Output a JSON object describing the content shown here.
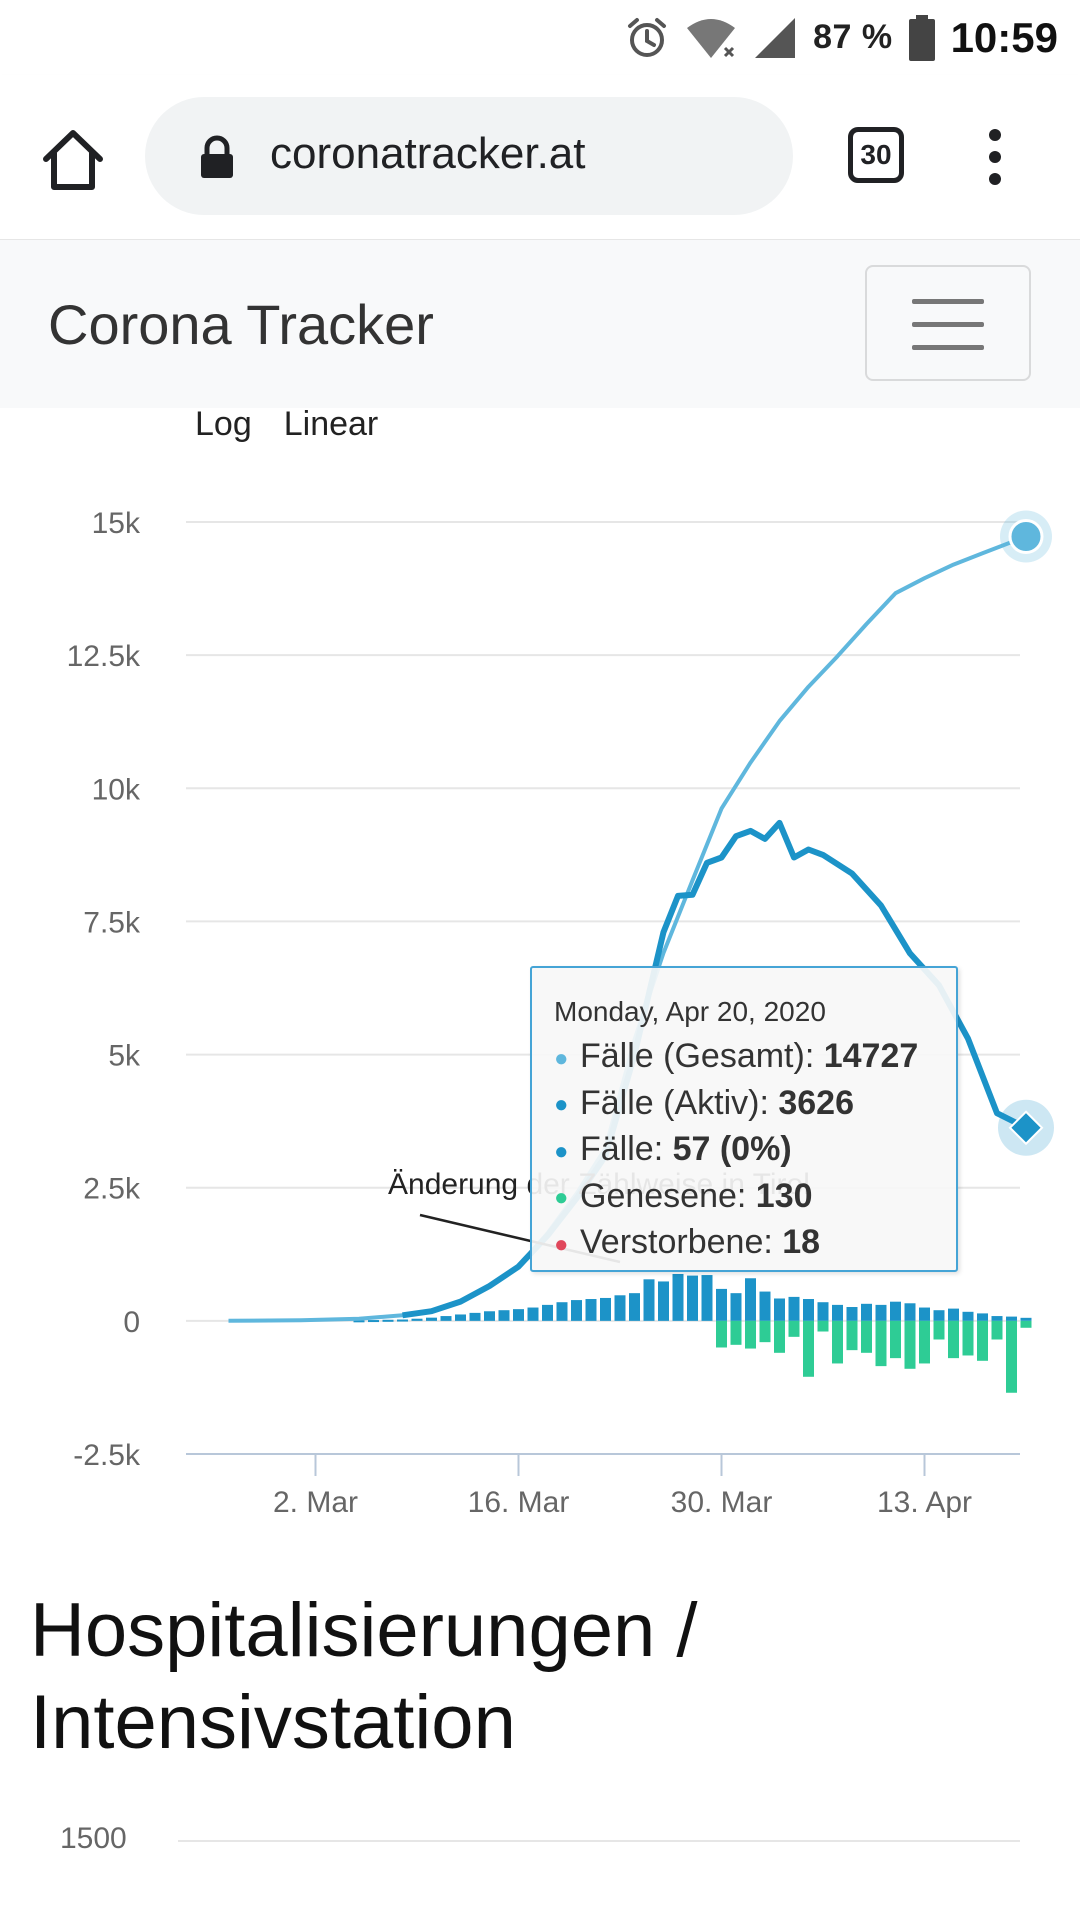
{
  "status_bar": {
    "battery": "87 %",
    "time": "10:59"
  },
  "browser": {
    "url": "coronatracker.at",
    "tab_count": "30"
  },
  "navbar": {
    "brand": "Corona Tracker"
  },
  "scale_toggle": {
    "log": "Log",
    "linear": "Linear"
  },
  "colors": {
    "total": "#5fb7dd",
    "active": "#1c93c8",
    "daily": "#1c93c8",
    "recovered": "#2ecc95",
    "deaths": "#e0475b",
    "grid": "#e6e6e6"
  },
  "chart_data": {
    "type": "line",
    "y_ticks": [
      "15k",
      "12.5k",
      "10k",
      "7.5k",
      "5k",
      "2.5k",
      "0",
      "-2.5k"
    ],
    "x_ticks": [
      "2. Mar",
      "16. Mar",
      "30. Mar",
      "13. Apr"
    ],
    "ylim": [
      -2500,
      15000
    ],
    "annotation": "Änderung der Zählweise in Tirol",
    "series": [
      {
        "name": "Fälle (Gesamt)",
        "type": "line",
        "points": [
          [
            "2020-02-25",
            2
          ],
          [
            "2020-03-01",
            10
          ],
          [
            "2020-03-05",
            40
          ],
          [
            "2020-03-08",
            104
          ],
          [
            "2020-03-10",
            182
          ],
          [
            "2020-03-12",
            361
          ],
          [
            "2020-03-14",
            655
          ],
          [
            "2020-03-16",
            1018
          ],
          [
            "2020-03-18",
            1646
          ],
          [
            "2020-03-20",
            2388
          ],
          [
            "2020-03-22",
            3244
          ],
          [
            "2020-03-24",
            5282
          ],
          [
            "2020-03-26",
            6909
          ],
          [
            "2020-03-28",
            8271
          ],
          [
            "2020-03-30",
            9618
          ],
          [
            "2020-04-01",
            10482
          ],
          [
            "2020-04-03",
            11262
          ],
          [
            "2020-04-05",
            11907
          ],
          [
            "2020-04-07",
            12481
          ],
          [
            "2020-04-09",
            13084
          ],
          [
            "2020-04-11",
            13663
          ],
          [
            "2020-04-13",
            13945
          ],
          [
            "2020-04-15",
            14200
          ],
          [
            "2020-04-17",
            14412
          ],
          [
            "2020-04-20",
            14727
          ]
        ]
      },
      {
        "name": "Fälle (Aktiv)",
        "type": "line",
        "points": [
          [
            "2020-03-08",
            104
          ],
          [
            "2020-03-10",
            182
          ],
          [
            "2020-03-12",
            361
          ],
          [
            "2020-03-14",
            655
          ],
          [
            "2020-03-16",
            1018
          ],
          [
            "2020-03-18",
            1600
          ],
          [
            "2020-03-20",
            2300
          ],
          [
            "2020-03-22",
            3100
          ],
          [
            "2020-03-24",
            5000
          ],
          [
            "2020-03-26",
            7300
          ],
          [
            "2020-03-27",
            7980
          ],
          [
            "2020-03-28",
            8000
          ],
          [
            "2020-03-29",
            8600
          ],
          [
            "2020-03-30",
            8700
          ],
          [
            "2020-03-31",
            9100
          ],
          [
            "2020-04-01",
            9200
          ],
          [
            "2020-04-02",
            9050
          ],
          [
            "2020-04-03",
            9350
          ],
          [
            "2020-04-04",
            8700
          ],
          [
            "2020-04-05",
            8850
          ],
          [
            "2020-04-06",
            8750
          ],
          [
            "2020-04-08",
            8400
          ],
          [
            "2020-04-10",
            7800
          ],
          [
            "2020-04-12",
            6900
          ],
          [
            "2020-04-14",
            6300
          ],
          [
            "2020-04-16",
            5300
          ],
          [
            "2020-04-18",
            3900
          ],
          [
            "2020-04-20",
            3626
          ]
        ]
      },
      {
        "name": "Fälle",
        "type": "bar",
        "points": [
          [
            "2020-03-05",
            10
          ],
          [
            "2020-03-06",
            15
          ],
          [
            "2020-03-07",
            20
          ],
          [
            "2020-03-08",
            25
          ],
          [
            "2020-03-09",
            40
          ],
          [
            "2020-03-10",
            60
          ],
          [
            "2020-03-11",
            90
          ],
          [
            "2020-03-12",
            120
          ],
          [
            "2020-03-13",
            150
          ],
          [
            "2020-03-14",
            180
          ],
          [
            "2020-03-15",
            200
          ],
          [
            "2020-03-16",
            220
          ],
          [
            "2020-03-17",
            250
          ],
          [
            "2020-03-18",
            300
          ],
          [
            "2020-03-19",
            350
          ],
          [
            "2020-03-20",
            390
          ],
          [
            "2020-03-21",
            410
          ],
          [
            "2020-03-22",
            430
          ],
          [
            "2020-03-23",
            480
          ],
          [
            "2020-03-24",
            520
          ],
          [
            "2020-03-25",
            780
          ],
          [
            "2020-03-26",
            740
          ],
          [
            "2020-03-27",
            880
          ],
          [
            "2020-03-28",
            850
          ],
          [
            "2020-03-29",
            860
          ],
          [
            "2020-03-30",
            600
          ],
          [
            "2020-03-31",
            520
          ],
          [
            "2020-04-01",
            800
          ],
          [
            "2020-04-02",
            550
          ],
          [
            "2020-04-03",
            420
          ],
          [
            "2020-04-04",
            450
          ],
          [
            "2020-04-05",
            410
          ],
          [
            "2020-04-06",
            350
          ],
          [
            "2020-04-07",
            300
          ],
          [
            "2020-04-08",
            260
          ],
          [
            "2020-04-09",
            320
          ],
          [
            "2020-04-10",
            300
          ],
          [
            "2020-04-11",
            360
          ],
          [
            "2020-04-12",
            330
          ],
          [
            "2020-04-13",
            250
          ],
          [
            "2020-04-14",
            200
          ],
          [
            "2020-04-15",
            230
          ],
          [
            "2020-04-16",
            170
          ],
          [
            "2020-04-17",
            140
          ],
          [
            "2020-04-18",
            90
          ],
          [
            "2020-04-19",
            80
          ],
          [
            "2020-04-20",
            57
          ]
        ]
      },
      {
        "name": "Genesene",
        "type": "bar",
        "points": [
          [
            "2020-03-30",
            -500
          ],
          [
            "2020-03-31",
            -450
          ],
          [
            "2020-04-01",
            -520
          ],
          [
            "2020-04-02",
            -400
          ],
          [
            "2020-04-03",
            -600
          ],
          [
            "2020-04-04",
            -300
          ],
          [
            "2020-04-05",
            -1050
          ],
          [
            "2020-04-06",
            -200
          ],
          [
            "2020-04-07",
            -800
          ],
          [
            "2020-04-08",
            -550
          ],
          [
            "2020-04-09",
            -600
          ],
          [
            "2020-04-10",
            -850
          ],
          [
            "2020-04-11",
            -700
          ],
          [
            "2020-04-12",
            -900
          ],
          [
            "2020-04-13",
            -800
          ],
          [
            "2020-04-14",
            -350
          ],
          [
            "2020-04-15",
            -700
          ],
          [
            "2020-04-16",
            -650
          ],
          [
            "2020-04-17",
            -750
          ],
          [
            "2020-04-18",
            -350
          ],
          [
            "2020-04-19",
            -1350
          ],
          [
            "2020-04-20",
            -130
          ]
        ]
      }
    ],
    "tooltip": {
      "date": "Monday, Apr 20, 2020",
      "rows": [
        {
          "label": "Fälle (Gesamt): ",
          "value": "14727",
          "color": "#5fb7dd"
        },
        {
          "label": "Fälle (Aktiv): ",
          "value": "3626",
          "color": "#1c93c8"
        },
        {
          "label": "Fälle: ",
          "value": "57 (0%)",
          "color": "#1c93c8"
        },
        {
          "label": "Genesene: ",
          "value": "130",
          "color": "#2ecc95"
        },
        {
          "label": "Verstorbene: ",
          "value": "18",
          "color": "#e0475b"
        }
      ]
    }
  },
  "section": {
    "title_line1": "Hospitalisierungen /",
    "title_line2": "Intensivstation"
  },
  "chart2": {
    "y_tick": "1500"
  }
}
